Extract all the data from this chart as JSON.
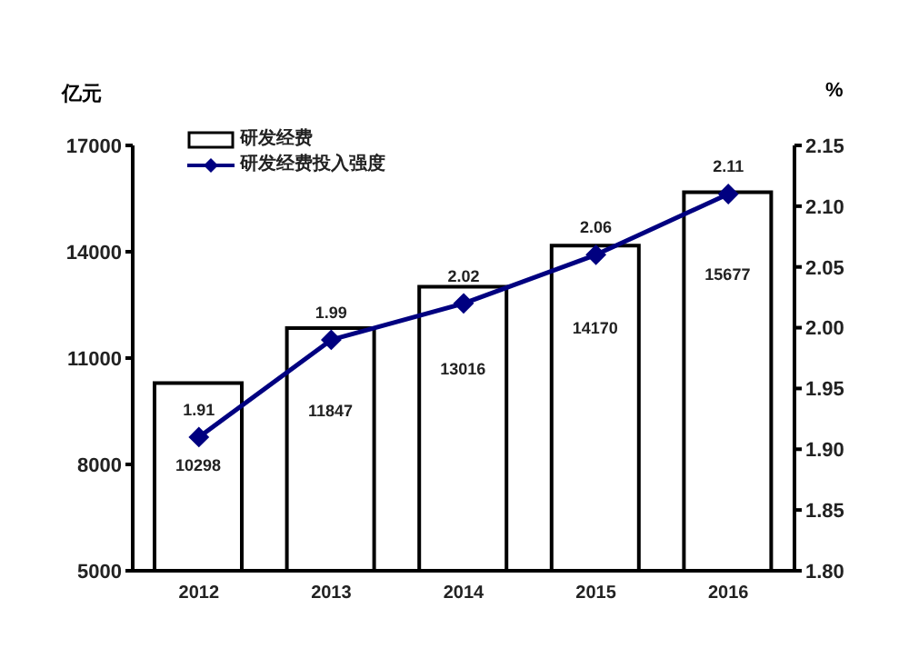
{
  "chart_data": {
    "type": "bar",
    "ylabel": "亿元",
    "y2label": "%",
    "categories": [
      "2012",
      "2013",
      "2014",
      "2015",
      "2016"
    ],
    "series": [
      {
        "name": "研发经费",
        "color": "#ffffff",
        "values": [
          10298,
          11847,
          13016,
          14170,
          15677
        ]
      },
      {
        "name": "研发经费投入强度",
        "type": "line",
        "axis": "y2",
        "color": "#000080",
        "marker": "diamond",
        "values": [
          1.91,
          1.99,
          2.02,
          2.06,
          2.11
        ]
      }
    ],
    "ylim": [
      5000,
      17000
    ],
    "yticks": [
      5000,
      8000,
      11000,
      14000,
      17000
    ],
    "y2lim": [
      1.8,
      2.15
    ],
    "y2ticks": [
      {
        "value": 1.8,
        "label": "1.80"
      },
      {
        "value": 1.85,
        "label": "1.85"
      },
      {
        "value": 1.9,
        "label": "1.90"
      },
      {
        "value": 1.95,
        "label": "1.95"
      },
      {
        "value": 2.0,
        "label": "2.00"
      },
      {
        "value": 2.05,
        "label": "2.05"
      },
      {
        "value": 2.1,
        "label": "2.10"
      },
      {
        "value": 2.15,
        "label": "2.15"
      }
    ],
    "data_labels": true,
    "legend": "top left",
    "grid": false
  }
}
